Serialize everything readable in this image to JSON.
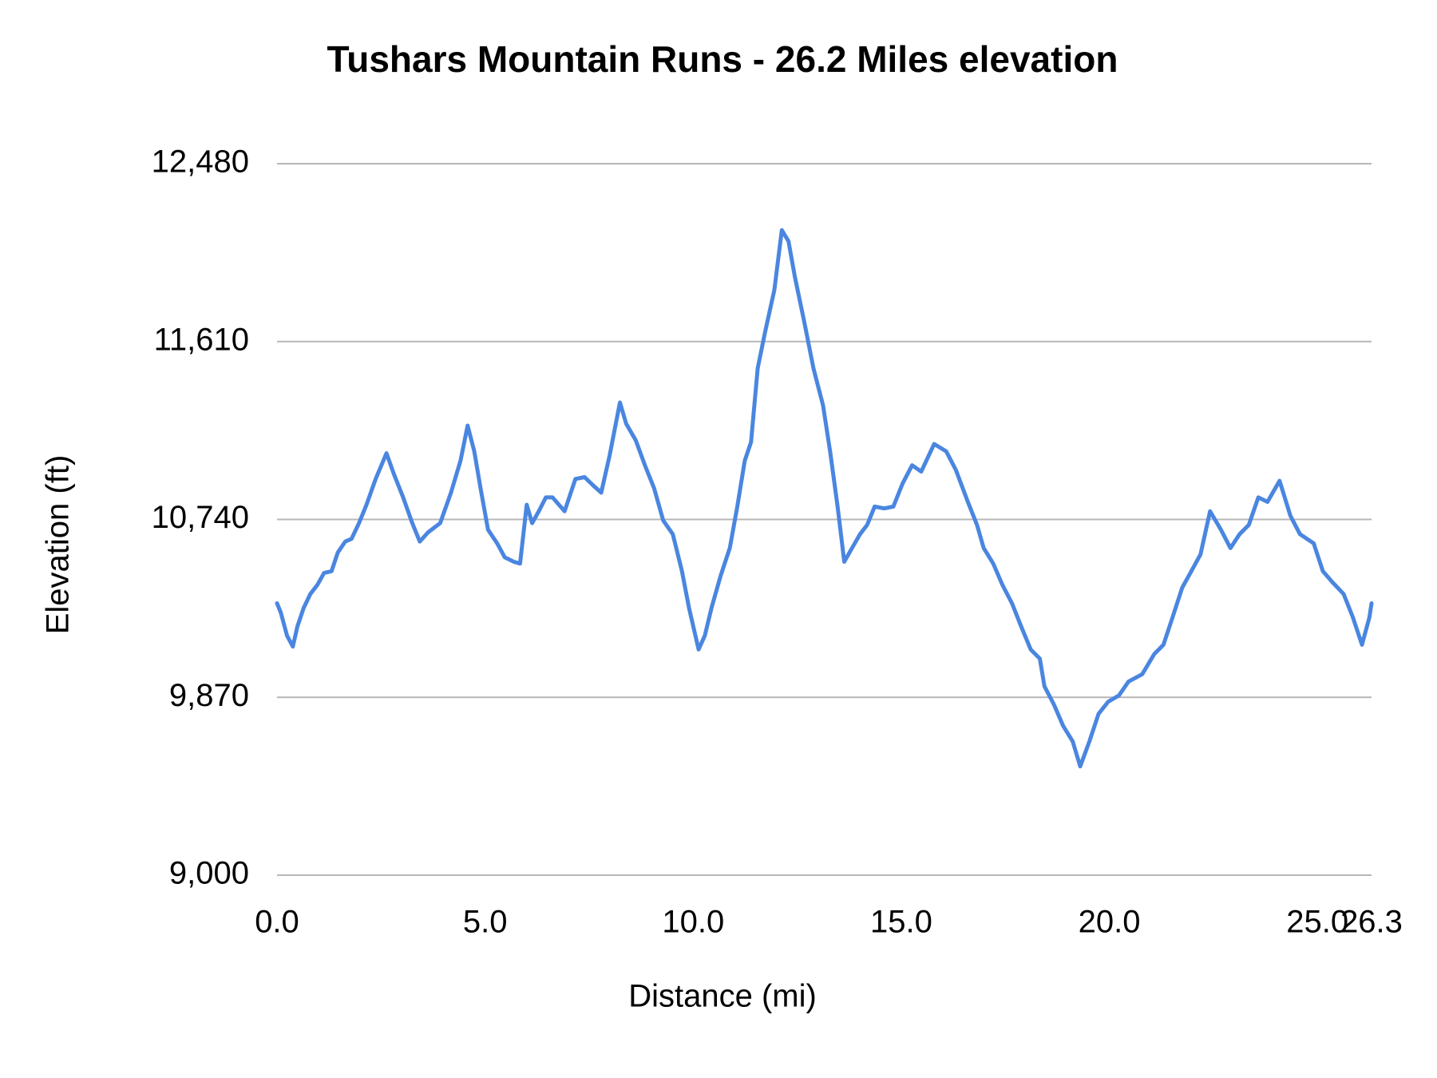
{
  "chart_data": {
    "type": "line",
    "title": "Tushars Mountain Runs - 26.2 Miles elevation",
    "x_label": "Distance (mi)",
    "y_label": "Elevation (ft)",
    "xlim": [
      0,
      26.3
    ],
    "xticks": [
      {
        "value": 0,
        "label": "0.0"
      },
      {
        "value": 5,
        "label": "5.0"
      },
      {
        "value": 10,
        "label": "10.0"
      },
      {
        "value": 15,
        "label": "15.0"
      },
      {
        "value": 20,
        "label": "20.0"
      },
      {
        "value": 25,
        "label": "25.0"
      },
      {
        "value": 26.3,
        "label": "26.3"
      }
    ],
    "ylim": [
      9000,
      12480
    ],
    "yticks": [
      {
        "value": 9000,
        "label": "9,000"
      },
      {
        "value": 9870,
        "label": "9,870"
      },
      {
        "value": 10740,
        "label": "10,740"
      },
      {
        "value": 11610,
        "label": "11,610"
      },
      {
        "value": 12480,
        "label": "12,480"
      }
    ],
    "grid": true,
    "x": [
      0,
      0.09,
      0.24,
      0.38,
      0.49,
      0.64,
      0.8,
      0.97,
      1.13,
      1.31,
      1.46,
      1.64,
      1.79,
      1.97,
      2.15,
      2.37,
      2.63,
      2.81,
      3.03,
      3.25,
      3.43,
      3.63,
      3.92,
      4.18,
      4.41,
      4.58,
      4.74,
      4.89,
      5.07,
      5.29,
      5.47,
      5.69,
      5.84,
      6.0,
      6.13,
      6.29,
      6.46,
      6.62,
      6.91,
      7.17,
      7.39,
      7.62,
      7.79,
      7.99,
      8.24,
      8.39,
      8.62,
      8.84,
      9.06,
      9.28,
      9.51,
      9.73,
      9.9,
      10.13,
      10.28,
      10.44,
      10.66,
      10.88,
      11.06,
      11.24,
      11.39,
      11.55,
      11.73,
      11.95,
      12.13,
      12.29,
      12.44,
      12.67,
      12.89,
      13.12,
      13.29,
      13.47,
      13.63,
      13.78,
      14.01,
      14.18,
      14.36,
      14.59,
      14.81,
      15.03,
      15.26,
      15.48,
      15.79,
      16.08,
      16.31,
      16.6,
      16.82,
      16.98,
      17.21,
      17.43,
      17.66,
      17.88,
      18.11,
      18.33,
      18.44,
      18.67,
      18.89,
      19.12,
      19.3,
      19.52,
      19.74,
      19.97,
      20.23,
      20.46,
      20.79,
      21.08,
      21.3,
      21.52,
      21.75,
      21.97,
      22.19,
      22.42,
      22.68,
      22.91,
      23.13,
      23.35,
      23.58,
      23.8,
      24.09,
      24.35,
      24.58,
      24.91,
      25.13,
      25.36,
      25.63,
      25.85,
      26.07,
      26.25,
      26.3
    ],
    "series": [
      {
        "name": "Elevation",
        "color": "#4a86e0",
        "values": [
          10330,
          10285,
          10172,
          10118,
          10217,
          10307,
          10375,
          10420,
          10478,
          10487,
          10578,
          10632,
          10645,
          10722,
          10812,
          10938,
          11064,
          10961,
          10848,
          10722,
          10632,
          10677,
          10722,
          10871,
          11028,
          11199,
          11073,
          10893,
          10690,
          10623,
          10555,
          10533,
          10524,
          10812,
          10722,
          10780,
          10848,
          10848,
          10780,
          10938,
          10947,
          10902,
          10871,
          11051,
          11312,
          11208,
          11127,
          11005,
          10893,
          10735,
          10668,
          10487,
          10307,
          10104,
          10172,
          10307,
          10465,
          10600,
          10803,
          11028,
          11118,
          11479,
          11659,
          11862,
          12155,
          12101,
          11930,
          11705,
          11479,
          11298,
          11073,
          10803,
          10533,
          10587,
          10668,
          10713,
          10803,
          10794,
          10803,
          10915,
          11005,
          10974,
          11109,
          11073,
          10983,
          10826,
          10713,
          10600,
          10524,
          10420,
          10330,
          10217,
          10104,
          10059,
          9924,
          9834,
          9730,
          9654,
          9532,
          9654,
          9789,
          9848,
          9879,
          9947,
          9983,
          10082,
          10127,
          10262,
          10406,
          10487,
          10569,
          10780,
          10690,
          10600,
          10668,
          10713,
          10848,
          10826,
          10929,
          10758,
          10668,
          10623,
          10487,
          10433,
          10375,
          10262,
          10127,
          10262,
          10330
        ]
      }
    ]
  }
}
